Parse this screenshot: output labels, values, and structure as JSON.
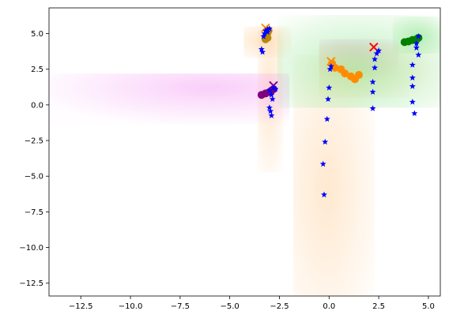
{
  "chart_data": {
    "type": "scatter",
    "title": "",
    "xlabel": "",
    "ylabel": "",
    "xlim": [
      -14.1,
      5.6
    ],
    "ylim": [
      -13.4,
      6.8
    ],
    "xticks": [
      -12.5,
      -10.0,
      -7.5,
      -5.0,
      -2.5,
      0.0,
      2.5,
      5.0
    ],
    "xtick_labels": [
      "−12.5",
      "−10.0",
      "−7.5",
      "−5.0",
      "−2.5",
      "0.0",
      "2.5",
      "5.0"
    ],
    "yticks": [
      5.0,
      2.5,
      0.0,
      -2.5,
      -5.0,
      -7.5,
      -10.0,
      -12.5
    ],
    "ytick_labels": [
      "5.0",
      "2.5",
      "0.0",
      "−2.5",
      "−5.0",
      "−7.5",
      "−10.0",
      "−12.5"
    ],
    "grid": false,
    "legend": "none",
    "colors": {
      "orange": "#ff8c00",
      "goldenrod": "#b8860b",
      "purple": "#800080",
      "green": "#008000",
      "red": "#ff0000",
      "blue": "#0000ff"
    },
    "density_regions": [
      {
        "color": "#ffd6a8",
        "opacity": 0.3,
        "x_range": [
          -4.3,
          -1.9
        ],
        "y_range": [
          3.3,
          5.5
        ],
        "center": [
          -3.3,
          4.5
        ]
      },
      {
        "color": "#ffd6a8",
        "opacity": 0.25,
        "x_range": [
          -3.6,
          -2.3
        ],
        "y_range": [
          -4.7,
          5.3
        ],
        "center": [
          -3.0,
          1.0
        ]
      },
      {
        "color": "#f5a6f5",
        "opacity": 0.25,
        "x_range": [
          -14.1,
          -2.0
        ],
        "y_range": [
          -1.4,
          2.2
        ],
        "center": [
          -6.0,
          1.2
        ]
      },
      {
        "color": "#f5a6f5",
        "opacity": 0.3,
        "x_range": [
          -0.5,
          3.5
        ],
        "y_range": [
          2.0,
          4.6
        ],
        "center": [
          1.2,
          3.5
        ]
      },
      {
        "color": "#ffd6a8",
        "opacity": 0.25,
        "x_range": [
          -1.8,
          2.3
        ],
        "y_range": [
          -13.4,
          3.5
        ],
        "center": [
          -0.1,
          -6.0
        ]
      },
      {
        "color": "#ffd6a8",
        "opacity": 0.3,
        "x_range": [
          -0.5,
          5.6
        ],
        "y_range": [
          0.5,
          4.3
        ],
        "center": [
          1.0,
          2.5
        ]
      },
      {
        "color": "#9be89b",
        "opacity": 0.3,
        "x_range": [
          -2.6,
          5.6
        ],
        "y_range": [
          -0.2,
          6.3
        ],
        "center": [
          1.5,
          2.5
        ]
      },
      {
        "color": "#9be89b",
        "opacity": 0.3,
        "x_range": [
          3.2,
          5.6
        ],
        "y_range": [
          3.6,
          6.2
        ],
        "center": [
          4.5,
          4.8
        ]
      }
    ],
    "series": [
      {
        "color": "#b8860b",
        "marker": "circle",
        "points": [
          [
            -3.2,
            4.6
          ],
          [
            -3.1,
            4.7
          ],
          [
            -3.15,
            4.9
          ],
          [
            -3.1,
            5.05
          ],
          [
            -3.05,
            5.2
          ]
        ]
      },
      {
        "color": "#ff8c00",
        "marker": "circle",
        "points": [
          [
            0.15,
            2.9
          ],
          [
            0.3,
            2.6
          ],
          [
            0.6,
            2.5
          ],
          [
            0.8,
            2.2
          ],
          [
            1.1,
            2.0
          ],
          [
            1.3,
            1.8
          ],
          [
            1.5,
            2.1
          ]
        ]
      },
      {
        "color": "#800080",
        "marker": "circle",
        "points": [
          [
            -3.4,
            0.7
          ],
          [
            -3.2,
            0.8
          ],
          [
            -3.0,
            0.9
          ],
          [
            -2.9,
            1.0
          ],
          [
            -2.8,
            1.1
          ]
        ]
      },
      {
        "color": "#008000",
        "marker": "circle",
        "points": [
          [
            3.8,
            4.4
          ],
          [
            4.0,
            4.45
          ],
          [
            4.2,
            4.55
          ],
          [
            4.4,
            4.6
          ],
          [
            4.5,
            4.7
          ]
        ]
      },
      {
        "color": "#ff8c00",
        "marker": "x",
        "points": [
          [
            -3.2,
            5.4
          ]
        ]
      },
      {
        "color": "#ff0000",
        "marker": "x",
        "points": [
          [
            2.25,
            4.05
          ]
        ]
      },
      {
        "color": "#800080",
        "marker": "x",
        "points": [
          [
            -2.8,
            1.35
          ]
        ]
      },
      {
        "color": "#ff8c00",
        "marker": "x",
        "points": [
          [
            0.1,
            3.05
          ]
        ]
      },
      {
        "color": "#0000ff",
        "marker": "star",
        "points": [
          [
            -3.4,
            3.9
          ],
          [
            -3.35,
            3.7
          ],
          [
            -3.3,
            4.8
          ],
          [
            -3.25,
            5.0
          ],
          [
            -3.2,
            5.2
          ],
          [
            -3.1,
            5.3
          ],
          [
            -3.0,
            5.35
          ],
          [
            -3.1,
            5.1
          ],
          [
            -3.0,
            1.0
          ],
          [
            -2.9,
            0.7
          ],
          [
            -2.85,
            0.4
          ],
          [
            -2.8,
            1.2
          ],
          [
            -2.7,
            1.1
          ],
          [
            -3.0,
            -0.2
          ],
          [
            -2.95,
            -0.45
          ],
          [
            -2.9,
            -0.75
          ],
          [
            -0.2,
            -2.6
          ],
          [
            -0.3,
            -4.15
          ],
          [
            -0.25,
            -6.3
          ],
          [
            -0.1,
            -1.0
          ],
          [
            -0.05,
            0.4
          ],
          [
            0.0,
            1.2
          ],
          [
            0.05,
            2.5
          ],
          [
            0.1,
            2.7
          ],
          [
            2.2,
            -0.25
          ],
          [
            2.2,
            0.9
          ],
          [
            2.2,
            1.6
          ],
          [
            2.3,
            2.6
          ],
          [
            2.3,
            3.2
          ],
          [
            2.4,
            3.6
          ],
          [
            2.5,
            3.8
          ],
          [
            4.3,
            -0.6
          ],
          [
            4.2,
            0.2
          ],
          [
            4.2,
            1.3
          ],
          [
            4.2,
            1.9
          ],
          [
            4.2,
            2.8
          ],
          [
            4.4,
            4.0
          ],
          [
            4.4,
            4.3
          ],
          [
            4.5,
            3.5
          ],
          [
            4.5,
            4.8
          ]
        ]
      }
    ]
  }
}
